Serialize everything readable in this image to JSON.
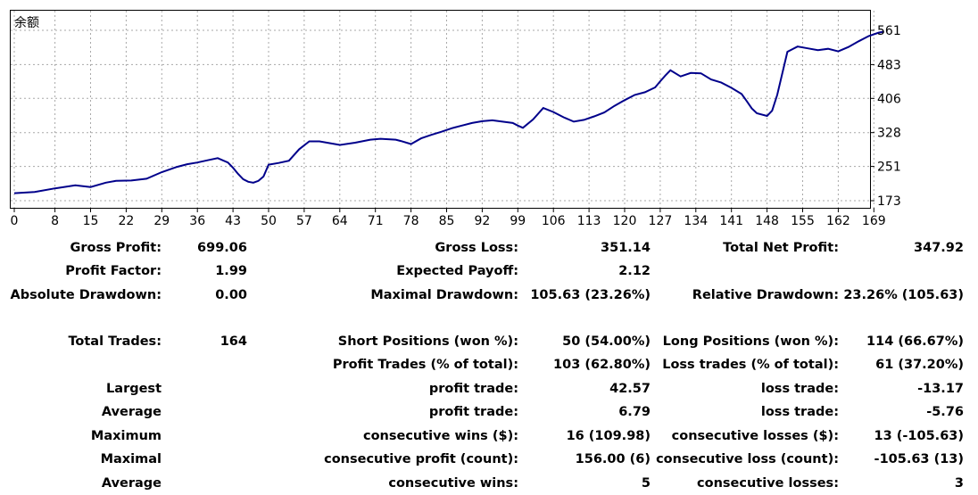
{
  "chart_data": {
    "type": "line",
    "title": "余额",
    "x_ticks": [
      "0",
      "8",
      "15",
      "22",
      "29",
      "36",
      "43",
      "50",
      "57",
      "64",
      "71",
      "78",
      "85",
      "92",
      "99",
      "106",
      "113",
      "120",
      "127",
      "134",
      "141",
      "148",
      "155",
      "162",
      "169"
    ],
    "y_ticks": [
      "561",
      "483",
      "406",
      "328",
      "251",
      "173"
    ],
    "xlim": [
      0,
      171
    ],
    "ylim": [
      173,
      561
    ],
    "grid": true,
    "line_color": "#00008b",
    "series": [
      {
        "x": [
          0,
          4,
          8,
          12,
          15,
          18,
          20,
          23,
          26,
          29,
          32,
          34,
          36,
          38,
          40,
          42,
          43,
          44,
          45,
          46,
          47,
          48,
          49,
          50,
          52,
          54,
          56,
          58,
          60,
          62,
          64,
          67,
          70,
          72,
          75,
          76,
          78,
          80,
          82,
          84,
          86,
          88,
          90,
          92,
          94,
          96,
          98,
          99,
          100,
          102,
          104,
          106,
          108,
          110,
          112,
          114,
          116,
          118,
          120,
          122,
          124,
          126,
          127,
          128,
          129,
          131,
          133,
          135,
          137,
          139,
          141,
          143,
          144,
          145,
          146,
          148,
          149,
          150,
          152,
          154,
          156,
          158,
          160,
          162,
          164,
          166,
          168,
          170,
          171
        ],
        "y": [
          190,
          193,
          201,
          208,
          204,
          214,
          218,
          219,
          223,
          238,
          250,
          256,
          260,
          265,
          270,
          260,
          248,
          234,
          222,
          216,
          214,
          218,
          228,
          255,
          259,
          264,
          290,
          308,
          308,
          304,
          300,
          305,
          312,
          314,
          312,
          309,
          302,
          315,
          323,
          330,
          338,
          344,
          350,
          354,
          356,
          353,
          350,
          344,
          339,
          358,
          384,
          375,
          363,
          353,
          357,
          365,
          374,
          389,
          402,
          414,
          420,
          431,
          445,
          458,
          470,
          456,
          464,
          463,
          449,
          442,
          430,
          416,
          400,
          383,
          372,
          366,
          378,
          414,
          512,
          524,
          520,
          516,
          519,
          513,
          523,
          536,
          548,
          556,
          558
        ]
      }
    ]
  },
  "stats": {
    "gross_profit": {
      "label": "Gross Profit:",
      "value": "699.06"
    },
    "gross_loss": {
      "label": "Gross Loss:",
      "value": "351.14"
    },
    "total_net_profit": {
      "label": "Total Net Profit:",
      "value": "347.92"
    },
    "profit_factor": {
      "label": "Profit Factor:",
      "value": "1.99"
    },
    "expected_payoff": {
      "label": "Expected Payoff:",
      "value": "2.12"
    },
    "absolute_drawdown": {
      "label": "Absolute Drawdown:",
      "value": "0.00"
    },
    "maximal_drawdown": {
      "label": "Maximal Drawdown:",
      "value": "105.63 (23.26%)"
    },
    "relative_drawdown": {
      "label": "Relative Drawdown:",
      "value": "23.26% (105.63)"
    },
    "total_trades": {
      "label": "Total Trades:",
      "value": "164"
    },
    "short_positions": {
      "label": "Short Positions (won %):",
      "value": "50 (54.00%)"
    },
    "long_positions": {
      "label": "Long Positions (won %):",
      "value": "114 (66.67%)"
    },
    "profit_trades": {
      "label": "Profit Trades (% of total):",
      "value": "103 (62.80%)"
    },
    "loss_trades": {
      "label": "Loss trades (% of total):",
      "value": "61 (37.20%)"
    },
    "largest": {
      "label": "Largest",
      "profit_label": "profit trade:",
      "profit_value": "42.57",
      "loss_label": "loss trade:",
      "loss_value": "-13.17"
    },
    "average": {
      "label": "Average",
      "profit_label": "profit trade:",
      "profit_value": "6.79",
      "loss_label": "loss trade:",
      "loss_value": "-5.76"
    },
    "maximum": {
      "label": "Maximum",
      "profit_label": "consecutive wins ($):",
      "profit_value": "16 (109.98)",
      "loss_label": "consecutive losses ($):",
      "loss_value": "13 (-105.63)"
    },
    "maximal": {
      "label": "Maximal",
      "profit_label": "consecutive profit (count):",
      "profit_value": "156.00 (6)",
      "loss_label": "consecutive loss (count):",
      "loss_value": "-105.63 (13)"
    },
    "average_consec": {
      "label": "Average",
      "profit_label": "consecutive wins:",
      "profit_value": "5",
      "loss_label": "consecutive losses:",
      "loss_value": "3"
    }
  }
}
